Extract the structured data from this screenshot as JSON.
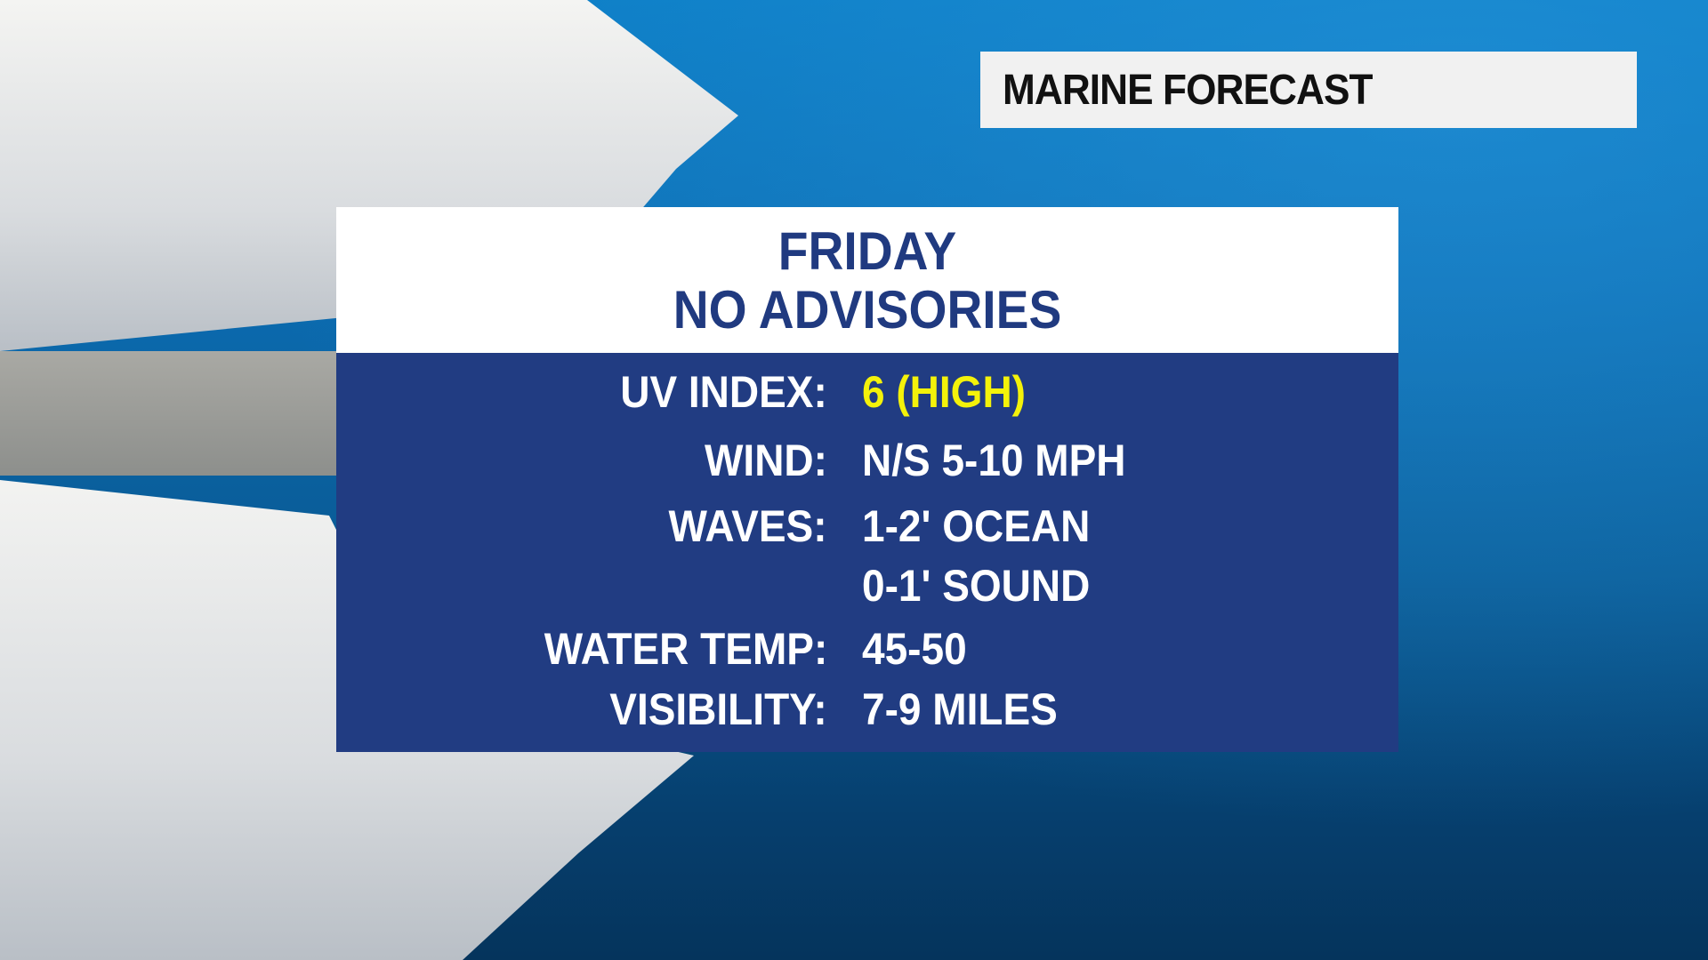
{
  "header": {
    "title": "MARINE FORECAST"
  },
  "panel": {
    "day": "FRIDAY",
    "advisory": "NO ADVISORIES",
    "rows": [
      {
        "label": "UV INDEX:",
        "value": "6 (HIGH)"
      },
      {
        "label": "WIND:",
        "value": "N/S 5-10 MPH"
      },
      {
        "label": "WAVES:",
        "value": "1-2' OCEAN"
      },
      {
        "label": "",
        "value": "0-1' SOUND"
      },
      {
        "label": "WATER TEMP:",
        "value": "45-50"
      },
      {
        "label": "VISIBILITY:",
        "value": "7-9 MILES"
      }
    ]
  },
  "colors": {
    "panel_blue": "#213c82",
    "uv_highlight": "#f4f20a",
    "title_text": "#203a80"
  }
}
